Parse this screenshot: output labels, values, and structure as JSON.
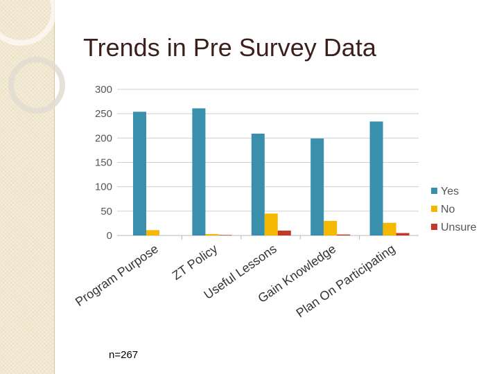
{
  "slide": {
    "title": "Trends in Pre Survey Data",
    "footnote": "n=267"
  },
  "chart_data": {
    "type": "bar",
    "categories": [
      "Program Purpose",
      "ZT Policy",
      "Useful Lessons",
      "Gain Knowledge",
      "Plan On Participating"
    ],
    "series": [
      {
        "name": "Yes",
        "color": "#3a8fad",
        "values": [
          254,
          261,
          209,
          199,
          234
        ]
      },
      {
        "name": "No",
        "color": "#f5b800",
        "values": [
          11,
          3,
          45,
          30,
          26
        ]
      },
      {
        "name": "Unsure",
        "color": "#c0392b",
        "values": [
          0,
          1,
          10,
          2,
          5
        ]
      }
    ],
    "yticks": [
      0,
      50,
      100,
      150,
      200,
      250,
      300
    ],
    "ylim": [
      0,
      300
    ],
    "grid": true,
    "legend": "right"
  }
}
